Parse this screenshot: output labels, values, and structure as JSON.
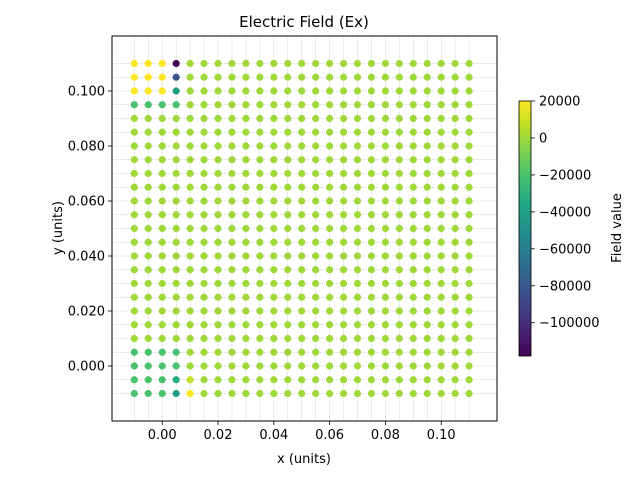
{
  "chart_data": {
    "type": "scatter",
    "title": "Electric Field (Ex)",
    "xlabel": "x (units)",
    "ylabel": "y (units)",
    "xlim": [
      -0.018,
      0.12
    ],
    "ylim": [
      -0.02,
      0.12
    ],
    "xticks": [
      "0.00",
      "0.02",
      "0.04",
      "0.06",
      "0.08",
      "0.10"
    ],
    "yticks": [
      "0.000",
      "0.020",
      "0.040",
      "0.060",
      "0.080",
      "0.100"
    ],
    "grid": true,
    "colormap": "viridis",
    "colorbar": {
      "label": "Field value",
      "range": [
        -118000,
        20000
      ],
      "ticks": [
        "20000",
        "0",
        "−20000",
        "−40000",
        "−60000",
        "−80000",
        "−100000"
      ]
    },
    "grid_points": {
      "x_start": -0.01,
      "x_step": 0.005,
      "nx": 25,
      "y_start": -0.01,
      "y_step": 0.005,
      "ny": 25,
      "background_value": 0
    },
    "special_points": [
      {
        "x": -0.01,
        "y": 0.11,
        "value": 20000
      },
      {
        "x": -0.005,
        "y": 0.11,
        "value": 20000
      },
      {
        "x": 0.0,
        "y": 0.11,
        "value": 20000
      },
      {
        "x": 0.005,
        "y": 0.11,
        "value": -118000
      },
      {
        "x": -0.01,
        "y": 0.105,
        "value": 20000
      },
      {
        "x": -0.005,
        "y": 0.105,
        "value": 20000
      },
      {
        "x": 0.0,
        "y": 0.105,
        "value": 20000
      },
      {
        "x": 0.005,
        "y": 0.105,
        "value": -82000
      },
      {
        "x": -0.01,
        "y": 0.1,
        "value": 20000
      },
      {
        "x": -0.005,
        "y": 0.1,
        "value": 20000
      },
      {
        "x": 0.0,
        "y": 0.1,
        "value": 20000
      },
      {
        "x": 0.005,
        "y": 0.1,
        "value": -42000
      },
      {
        "x": -0.01,
        "y": 0.095,
        "value": -20000
      },
      {
        "x": -0.005,
        "y": 0.095,
        "value": -20000
      },
      {
        "x": 0.0,
        "y": 0.095,
        "value": -20000
      },
      {
        "x": 0.005,
        "y": 0.095,
        "value": -20000
      },
      {
        "x": -0.01,
        "y": 0.005,
        "value": -20000
      },
      {
        "x": -0.005,
        "y": 0.005,
        "value": -20000
      },
      {
        "x": 0.0,
        "y": 0.005,
        "value": -20000
      },
      {
        "x": 0.005,
        "y": 0.005,
        "value": -20000
      },
      {
        "x": -0.01,
        "y": 0.0,
        "value": -20000
      },
      {
        "x": -0.005,
        "y": 0.0,
        "value": -20000
      },
      {
        "x": 0.0,
        "y": 0.0,
        "value": -20000
      },
      {
        "x": 0.005,
        "y": 0.0,
        "value": -20000
      },
      {
        "x": -0.01,
        "y": -0.005,
        "value": -20000
      },
      {
        "x": -0.005,
        "y": -0.005,
        "value": -20000
      },
      {
        "x": 0.0,
        "y": -0.005,
        "value": -20000
      },
      {
        "x": 0.005,
        "y": -0.005,
        "value": -32000
      },
      {
        "x": -0.01,
        "y": -0.01,
        "value": -20000
      },
      {
        "x": -0.005,
        "y": -0.01,
        "value": -20000
      },
      {
        "x": 0.0,
        "y": -0.01,
        "value": -20000
      },
      {
        "x": 0.005,
        "y": -0.01,
        "value": -42000
      },
      {
        "x": 0.01,
        "y": -0.01,
        "value": 20000
      },
      {
        "x": 0.01,
        "y": -0.005,
        "value": 8000
      }
    ]
  }
}
